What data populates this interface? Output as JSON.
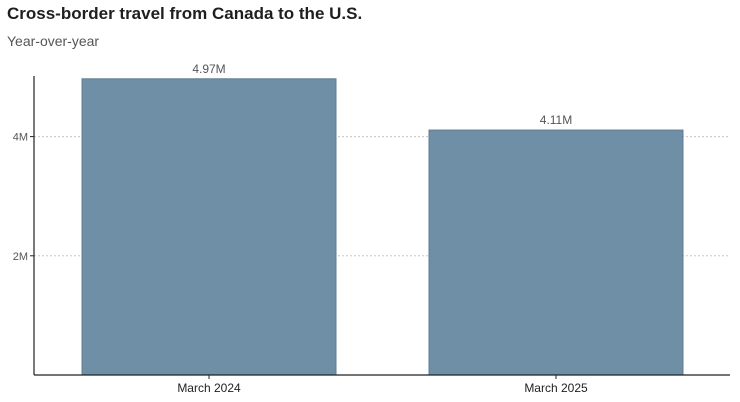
{
  "chart_data": {
    "type": "bar",
    "title": "Cross-border travel from Canada to the U.S.",
    "subtitle": "Year-over-year",
    "categories": [
      "March 2024",
      "March 2025"
    ],
    "values": [
      4970000,
      4110000
    ],
    "data_labels": [
      "4.97M",
      "4.11M"
    ],
    "ylim": [
      0,
      5000000
    ],
    "yticks": [
      {
        "value": 2000000,
        "label": "2M"
      },
      {
        "value": 4000000,
        "label": "4M"
      }
    ],
    "grid": "horizontal dotted",
    "colors": {
      "bar": "#6f8fa6",
      "grid": "#c8c8c8",
      "axis": "#222222"
    }
  }
}
